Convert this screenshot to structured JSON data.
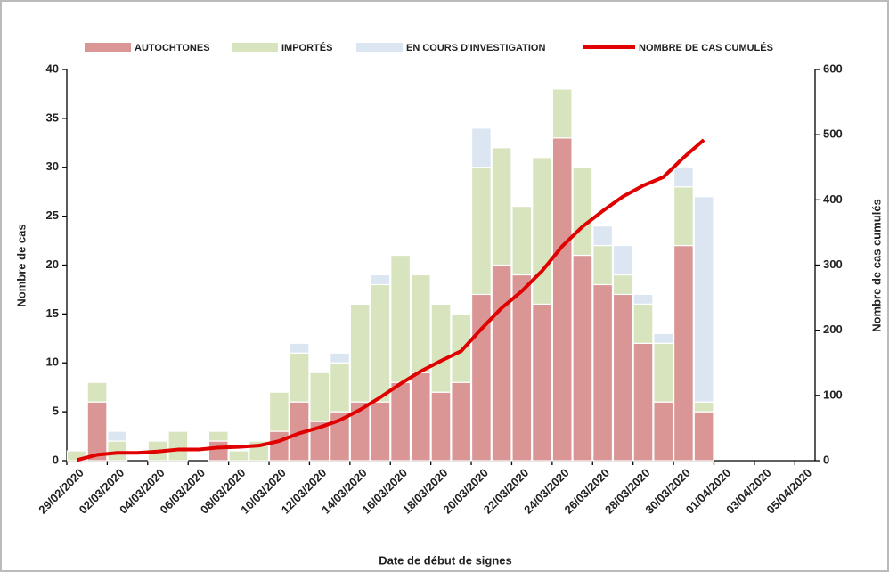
{
  "chart_data": {
    "type": "bar",
    "stacked": true,
    "categories": [
      "29/02/2020",
      null,
      "02/03/2020",
      null,
      "04/03/2020",
      null,
      "06/03/2020",
      null,
      "08/03/2020",
      null,
      "10/03/2020",
      null,
      "12/03/2020",
      null,
      "14/03/2020",
      null,
      "16/03/2020",
      null,
      "18/03/2020",
      null,
      "20/03/2020",
      null,
      "22/03/2020",
      null,
      "24/03/2020",
      null,
      "26/03/2020",
      null,
      "28/03/2020",
      null,
      "30/03/2020",
      null,
      "01/04/2020",
      null,
      "03/04/2020",
      null,
      "05/04/2020"
    ],
    "series": [
      {
        "name": "AUTOCHTONES",
        "color": "#d99694",
        "values": [
          0,
          6,
          0,
          0,
          0,
          0,
          0,
          2,
          0,
          0,
          3,
          6,
          4,
          5,
          6,
          6,
          8,
          9,
          7,
          8,
          17,
          20,
          19,
          16,
          33,
          21,
          18,
          17,
          12,
          6,
          22,
          5,
          null,
          null,
          null,
          null,
          null
        ]
      },
      {
        "name": "IMPORTÉS",
        "color": "#d7e4bd",
        "values": [
          1,
          2,
          2,
          0,
          2,
          3,
          0,
          1,
          1,
          2,
          4,
          5,
          5,
          5,
          10,
          12,
          13,
          10,
          9,
          7,
          13,
          12,
          7,
          15,
          5,
          9,
          4,
          2,
          4,
          6,
          6,
          1,
          null,
          null,
          null,
          null,
          null
        ]
      },
      {
        "name": "EN COURS D'INVESTIGATION",
        "color": "#dce6f2",
        "values": [
          0,
          0,
          1,
          0,
          0,
          0,
          0,
          0,
          0,
          0,
          0,
          1,
          0,
          1,
          0,
          1,
          0,
          0,
          0,
          0,
          4,
          0,
          0,
          0,
          0,
          0,
          2,
          3,
          1,
          1,
          2,
          21,
          null,
          null,
          null,
          null,
          null
        ]
      },
      {
        "name": "NOMBRE DE CAS CUMULÉS",
        "color": "#e00000",
        "type": "line",
        "axis": "y2",
        "values": [
          1,
          9,
          12,
          12,
          14,
          17,
          17,
          20,
          21,
          23,
          30,
          42,
          51,
          62,
          78,
          97,
          118,
          137,
          153,
          168,
          202,
          234,
          260,
          291,
          329,
          359,
          383,
          405,
          422,
          435,
          465,
          492,
          null,
          null,
          null,
          null,
          null
        ]
      }
    ],
    "ylabel": "Nombre de cas",
    "y2label": "Nombre de cas cumulés",
    "xlabel": "Date de début de signes",
    "ylim": [
      0,
      40
    ],
    "yticks": [
      0,
      5,
      10,
      15,
      20,
      25,
      30,
      35,
      40
    ],
    "y2lim": [
      0,
      600
    ],
    "y2ticks": [
      0,
      100,
      200,
      300,
      400,
      500,
      600
    ],
    "legend": "top",
    "grid": false
  }
}
